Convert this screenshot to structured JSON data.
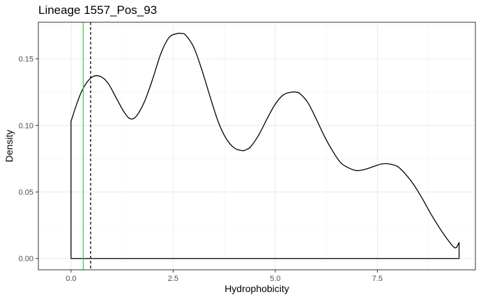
{
  "chart_data": {
    "type": "area",
    "title": "Lineage 1557_Pos_93",
    "xlabel": "Hydrophobicity",
    "ylabel": "Density",
    "xlim": [
      -0.8,
      9.9
    ],
    "ylim": [
      -0.0085,
      0.1775
    ],
    "x_ticks": [
      0,
      2.5,
      5,
      7.5
    ],
    "x_tick_labels": [
      "0.0",
      "2.5",
      "5.0",
      "7.5"
    ],
    "y_ticks": [
      0,
      0.05,
      0.1,
      0.15
    ],
    "y_tick_labels": [
      "0.00",
      "0.05",
      "0.10",
      "0.15"
    ],
    "grid": true,
    "theme": "bw",
    "density": {
      "x": [
        0,
        0.15,
        0.3,
        0.5,
        0.7,
        0.9,
        1.1,
        1.3,
        1.45,
        1.6,
        1.8,
        2.0,
        2.2,
        2.4,
        2.6,
        2.7,
        2.8,
        3.0,
        3.2,
        3.4,
        3.6,
        3.8,
        4.0,
        4.2,
        4.3,
        4.4,
        4.6,
        4.8,
        5.0,
        5.2,
        5.4,
        5.5,
        5.6,
        5.8,
        6.0,
        6.2,
        6.4,
        6.6,
        6.8,
        7.0,
        7.2,
        7.4,
        7.6,
        7.8,
        8.0,
        8.2,
        8.4,
        8.6,
        8.8,
        9.0,
        9.2,
        9.4,
        9.5
      ],
      "y": [
        0.103,
        0.117,
        0.128,
        0.136,
        0.137,
        0.132,
        0.121,
        0.11,
        0.105,
        0.107,
        0.118,
        0.135,
        0.154,
        0.166,
        0.169,
        0.169,
        0.168,
        0.159,
        0.142,
        0.122,
        0.103,
        0.09,
        0.083,
        0.081,
        0.082,
        0.084,
        0.093,
        0.105,
        0.116,
        0.123,
        0.125,
        0.125,
        0.124,
        0.117,
        0.105,
        0.092,
        0.081,
        0.072,
        0.068,
        0.066,
        0.067,
        0.069,
        0.071,
        0.071,
        0.069,
        0.063,
        0.055,
        0.045,
        0.034,
        0.024,
        0.015,
        0.008,
        0.012
      ],
      "color": "#000000"
    },
    "vlines": [
      {
        "x": 0.3,
        "color": "#00ff00",
        "linetype": "solid"
      },
      {
        "x": 0.48,
        "color": "#000000",
        "linetype": "dashed"
      }
    ]
  }
}
